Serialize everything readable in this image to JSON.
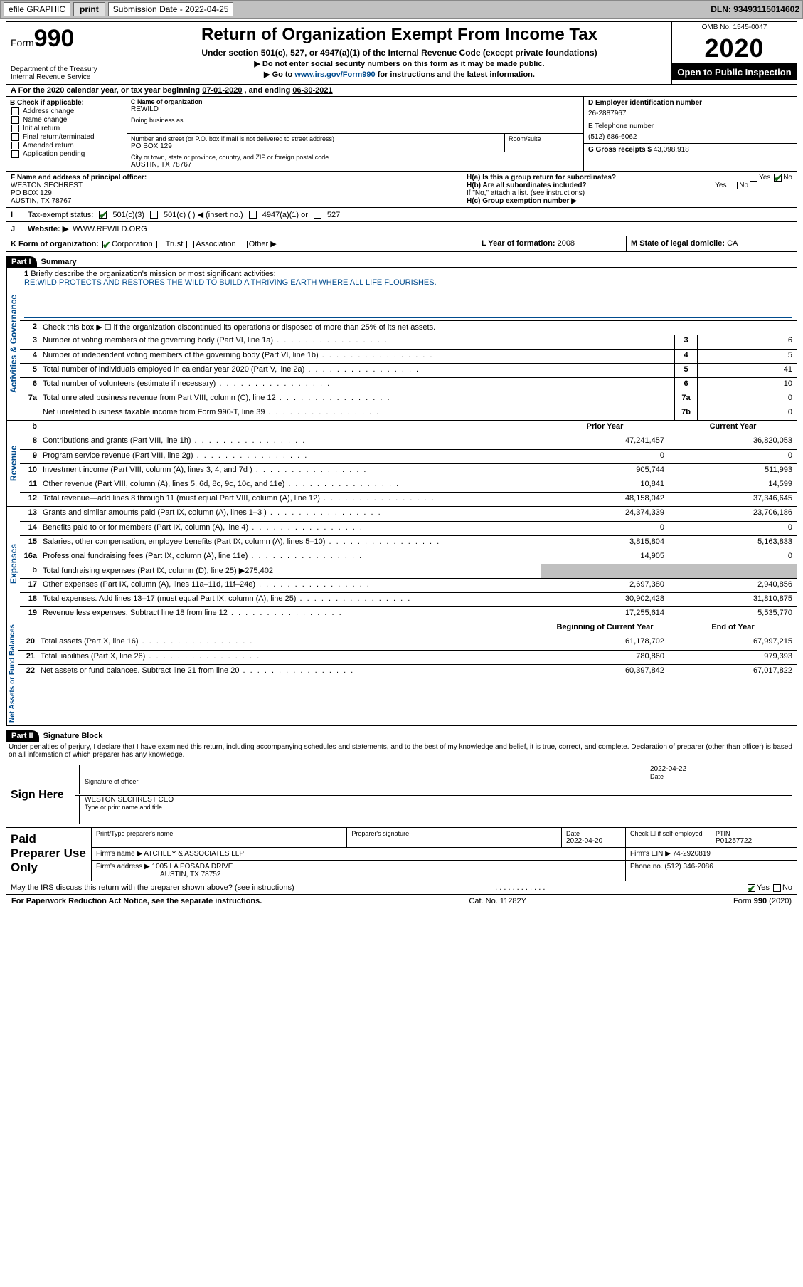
{
  "topbar": {
    "efile": "efile GRAPHIC",
    "print": "print",
    "subdate_lbl": "Submission Date",
    "subdate": "2022-04-25",
    "dln_lbl": "DLN:",
    "dln": "93493115014602"
  },
  "header": {
    "form_word": "Form",
    "form_num": "990",
    "dept": "Department of the Treasury",
    "irs": "Internal Revenue Service",
    "title": "Return of Organization Exempt From Income Tax",
    "sub": "Under section 501(c), 527, or 4947(a)(1) of the Internal Revenue Code (except private foundations)",
    "arrow1": "▶ Do not enter social security numbers on this form as it may be made public.",
    "arrow2_pre": "▶ Go to ",
    "arrow2_link": "www.irs.gov/Form990",
    "arrow2_post": " for instructions and the latest information.",
    "omb": "OMB No. 1545-0047",
    "year": "2020",
    "open": "Open to Public Inspection"
  },
  "period": {
    "a_pre": "A For the 2020 calendar year, or tax year beginning ",
    "a_begin": "07-01-2020",
    "a_mid": " , and ending ",
    "a_end": "06-30-2021"
  },
  "colB": {
    "hdr": "B Check if applicable:",
    "items": [
      "Address change",
      "Name change",
      "Initial return",
      "Final return/terminated",
      "Amended return",
      "Application pending"
    ]
  },
  "colC": {
    "name_lbl": "C Name of organization",
    "name": "REWILD",
    "dba_lbl": "Doing business as",
    "addr_lbl": "Number and street (or P.O. box if mail is not delivered to street address)",
    "room_lbl": "Room/suite",
    "addr": "PO BOX 129",
    "city_lbl": "City or town, state or province, country, and ZIP or foreign postal code",
    "city": "AUSTIN, TX  78767"
  },
  "colD": {
    "ein_lbl": "D Employer identification number",
    "ein": "26-2887967",
    "tel_lbl": "E Telephone number",
    "tel": "(512) 686-6062",
    "gross_lbl": "G Gross receipts $",
    "gross": "43,098,918"
  },
  "f": {
    "lbl": "F Name and address of principal officer:",
    "name": "WESTON SECHREST",
    "addr1": "PO BOX 129",
    "addr2": "AUSTIN, TX  78767"
  },
  "h": {
    "ha": "H(a)  Is this a group return for subordinates?",
    "hb": "H(b)  Are all subordinates included?",
    "hb2": "If \"No,\" attach a list. (see instructions)",
    "hc": "H(c)  Group exemption number ▶",
    "yes": "Yes",
    "no": "No"
  },
  "i": {
    "lbl": "I",
    "txt": "Tax-exempt status:",
    "opts": [
      "501(c)(3)",
      "501(c) (   ) ◀ (insert no.)",
      "4947(a)(1) or",
      "527"
    ]
  },
  "j": {
    "lbl": "J",
    "txt": "Website: ▶",
    "val": "WWW.REWILD.ORG"
  },
  "k": {
    "lbl": "K Form of organization:",
    "opts": [
      "Corporation",
      "Trust",
      "Association",
      "Other ▶"
    ],
    "l_lbl": "L Year of formation:",
    "l_val": "2008",
    "m_lbl": "M State of legal domicile:",
    "m_val": "CA"
  },
  "part1": {
    "hdr": "Part I",
    "title": "Summary",
    "side1": "Activities & Governance",
    "side2": "Revenue",
    "side3": "Expenses",
    "side4": "Net Assets or Fund Balances",
    "q1_lbl": "1",
    "q1": "Briefly describe the organization's mission or most significant activities:",
    "q1_val": "RE:WILD PROTECTS AND RESTORES THE WILD TO BUILD A THRIVING EARTH WHERE ALL LIFE FLOURISHES.",
    "q2_lbl": "2",
    "q2": "Check this box ▶ ☐  if the organization discontinued its operations or disposed of more than 25% of its net assets.",
    "prior_hdr": "Prior Year",
    "curr_hdr": "Current Year",
    "boy_hdr": "Beginning of Current Year",
    "eoy_hdr": "End of Year",
    "lines": [
      {
        "n": "3",
        "t": "Number of voting members of the governing body (Part VI, line 1a)",
        "b": "3",
        "v2": "6"
      },
      {
        "n": "4",
        "t": "Number of independent voting members of the governing body (Part VI, line 1b)",
        "b": "4",
        "v2": "5"
      },
      {
        "n": "5",
        "t": "Total number of individuals employed in calendar year 2020 (Part V, line 2a)",
        "b": "5",
        "v2": "41"
      },
      {
        "n": "6",
        "t": "Total number of volunteers (estimate if necessary)",
        "b": "6",
        "v2": "10"
      },
      {
        "n": "7a",
        "t": "Total unrelated business revenue from Part VIII, column (C), line 12",
        "b": "7a",
        "v2": "0"
      },
      {
        "n": "",
        "t": "Net unrelated business taxable income from Form 990-T, line 39",
        "b": "7b",
        "v2": "0"
      }
    ],
    "rev": [
      {
        "n": "8",
        "t": "Contributions and grants (Part VIII, line 1h)",
        "p": "47,241,457",
        "c": "36,820,053"
      },
      {
        "n": "9",
        "t": "Program service revenue (Part VIII, line 2g)",
        "p": "0",
        "c": "0"
      },
      {
        "n": "10",
        "t": "Investment income (Part VIII, column (A), lines 3, 4, and 7d )",
        "p": "905,744",
        "c": "511,993"
      },
      {
        "n": "11",
        "t": "Other revenue (Part VIII, column (A), lines 5, 6d, 8c, 9c, 10c, and 11e)",
        "p": "10,841",
        "c": "14,599"
      },
      {
        "n": "12",
        "t": "Total revenue—add lines 8 through 11 (must equal Part VIII, column (A), line 12)",
        "p": "48,158,042",
        "c": "37,346,645"
      }
    ],
    "exp": [
      {
        "n": "13",
        "t": "Grants and similar amounts paid (Part IX, column (A), lines 1–3 )",
        "p": "24,374,339",
        "c": "23,706,186"
      },
      {
        "n": "14",
        "t": "Benefits paid to or for members (Part IX, column (A), line 4)",
        "p": "0",
        "c": "0"
      },
      {
        "n": "15",
        "t": "Salaries, other compensation, employee benefits (Part IX, column (A), lines 5–10)",
        "p": "3,815,804",
        "c": "5,163,833"
      },
      {
        "n": "16a",
        "t": "Professional fundraising fees (Part IX, column (A), line 11e)",
        "p": "14,905",
        "c": "0"
      },
      {
        "n": "b",
        "t": "Total fundraising expenses (Part IX, column (D), line 25) ▶275,402",
        "grey": true
      },
      {
        "n": "17",
        "t": "Other expenses (Part IX, column (A), lines 11a–11d, 11f–24e)",
        "p": "2,697,380",
        "c": "2,940,856"
      },
      {
        "n": "18",
        "t": "Total expenses. Add lines 13–17 (must equal Part IX, column (A), line 25)",
        "p": "30,902,428",
        "c": "31,810,875"
      },
      {
        "n": "19",
        "t": "Revenue less expenses. Subtract line 18 from line 12",
        "p": "17,255,614",
        "c": "5,535,770"
      }
    ],
    "net": [
      {
        "n": "20",
        "t": "Total assets (Part X, line 16)",
        "p": "61,178,702",
        "c": "67,997,215"
      },
      {
        "n": "21",
        "t": "Total liabilities (Part X, line 26)",
        "p": "780,860",
        "c": "979,393"
      },
      {
        "n": "22",
        "t": "Net assets or fund balances. Subtract line 21 from line 20",
        "p": "60,397,842",
        "c": "67,017,822"
      }
    ]
  },
  "part2": {
    "hdr": "Part II",
    "title": "Signature Block",
    "perjury": "Under penalties of perjury, I declare that I have examined this return, including accompanying schedules and statements, and to the best of my knowledge and belief, it is true, correct, and complete. Declaration of preparer (other than officer) is based on all information of which preparer has any knowledge.",
    "sign_here": "Sign Here",
    "sig_officer": "Signature of officer",
    "date_lbl": "Date",
    "sig_date": "2022-04-22",
    "officer_name": "WESTON SECHREST CEO",
    "type_name": "Type or print name and title",
    "paid": "Paid Preparer Use Only",
    "prep_name_lbl": "Print/Type preparer's name",
    "prep_sig_lbl": "Preparer's signature",
    "prep_date_lbl": "Date",
    "prep_date": "2022-04-20",
    "self_emp": "Check ☐ if self-employed",
    "ptin_lbl": "PTIN",
    "ptin": "P01257722",
    "firm_name_lbl": "Firm's name    ▶",
    "firm_name": "ATCHLEY & ASSOCIATES LLP",
    "firm_ein_lbl": "Firm's EIN ▶",
    "firm_ein": "74-2920819",
    "firm_addr_lbl": "Firm's address ▶",
    "firm_addr1": "1005 LA POSADA DRIVE",
    "firm_addr2": "AUSTIN, TX  78752",
    "phone_lbl": "Phone no.",
    "phone": "(512) 346-2086",
    "discuss": "May the IRS discuss this return with the preparer shown above? (see instructions)"
  },
  "footer": {
    "pra": "For Paperwork Reduction Act Notice, see the separate instructions.",
    "cat": "Cat. No. 11282Y",
    "form": "Form 990 (2020)"
  }
}
